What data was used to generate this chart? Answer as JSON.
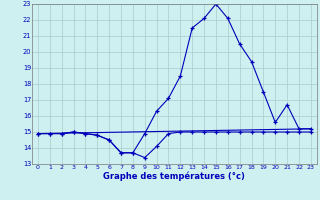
{
  "xlabel": "Graphe des températures (°c)",
  "bg_color": "#cff0f0",
  "grid_color": "#aacccc",
  "line_color": "#0000bb",
  "xlim": [
    -0.5,
    23.5
  ],
  "ylim": [
    13,
    23
  ],
  "yticks": [
    13,
    14,
    15,
    16,
    17,
    18,
    19,
    20,
    21,
    22,
    23
  ],
  "xticks": [
    0,
    1,
    2,
    3,
    4,
    5,
    6,
    7,
    8,
    9,
    10,
    11,
    12,
    13,
    14,
    15,
    16,
    17,
    18,
    19,
    20,
    21,
    22,
    23
  ],
  "series": [
    {
      "x": [
        0,
        1,
        2,
        3,
        4,
        5,
        6,
        7,
        8,
        9,
        10,
        11,
        12,
        13,
        14,
        15,
        16,
        17,
        18,
        19,
        20,
        21,
        22,
        23
      ],
      "y": [
        14.9,
        14.9,
        14.9,
        15.0,
        14.9,
        14.8,
        14.5,
        13.7,
        13.7,
        13.4,
        14.1,
        14.9,
        15.0,
        15.0,
        15.0,
        15.0,
        15.0,
        15.0,
        15.0,
        15.0,
        15.0,
        15.0,
        15.0,
        15.0
      ],
      "marker": true
    },
    {
      "x": [
        0,
        1,
        2,
        3,
        4,
        5,
        6,
        7,
        8,
        9,
        10,
        11,
        12,
        13,
        14,
        15,
        16,
        17,
        18,
        19,
        20,
        21,
        22,
        23
      ],
      "y": [
        14.9,
        14.9,
        14.9,
        15.0,
        14.9,
        14.8,
        14.5,
        13.7,
        13.7,
        14.9,
        16.3,
        17.1,
        18.5,
        21.5,
        22.1,
        23.0,
        22.1,
        20.5,
        19.4,
        17.5,
        15.6,
        16.7,
        15.2,
        15.2
      ],
      "marker": true
    },
    {
      "x": [
        0,
        23
      ],
      "y": [
        14.9,
        15.2
      ],
      "marker": false
    }
  ]
}
